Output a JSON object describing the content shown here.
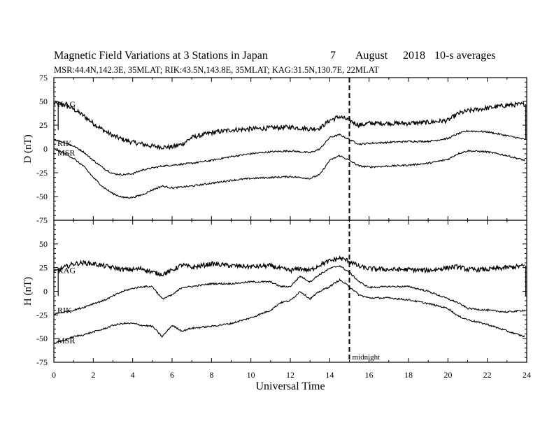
{
  "header": {
    "title": "Magnetic Field Variations at 3 Stations in Japan",
    "day": "7",
    "month": "August",
    "year": "2018",
    "averaging": "10-s averages",
    "stations_line": "MSR:44.4N,142.3E, 35MLAT;   RIK:43.5N,143.8E, 35MLAT;   KAG:31.5N,130.7E, 22MLAT"
  },
  "chart_data": [
    {
      "type": "line",
      "panel": "D",
      "ylabel": "D (nT)",
      "ylim": [
        -75,
        75
      ],
      "yticks": [
        75,
        50,
        25,
        0,
        -25,
        -50,
        -75
      ],
      "xlim": [
        0,
        24
      ],
      "series": [
        {
          "name": "KAG",
          "label_value": 47,
          "x": [
            0,
            0.5,
            1,
            1.5,
            2,
            2.5,
            3,
            3.5,
            4,
            4.5,
            5,
            5.5,
            6,
            6.5,
            7,
            8,
            9,
            10,
            11,
            12,
            12.5,
            13,
            13.5,
            14,
            14.5,
            15,
            15.5,
            16,
            17,
            18,
            19,
            20,
            20.5,
            21,
            22,
            23,
            23.9
          ],
          "y": [
            48,
            47,
            42,
            35,
            27,
            20,
            14,
            10,
            7,
            5,
            3,
            2,
            2,
            5,
            12,
            17,
            20,
            21,
            22,
            23,
            22,
            21,
            22,
            30,
            34,
            30,
            25,
            27,
            27,
            27,
            28,
            30,
            37,
            40,
            43,
            46,
            47
          ]
        },
        {
          "name": "RIK",
          "label_value": 6,
          "x": [
            0,
            0.5,
            1,
            1.5,
            2,
            2.5,
            3,
            3.5,
            4,
            4.5,
            5,
            5.5,
            6,
            6.5,
            7,
            8,
            9,
            10,
            11,
            12,
            12.5,
            13,
            13.5,
            14,
            14.5,
            15,
            15.5,
            16,
            17,
            18,
            19,
            20,
            20.5,
            21,
            22,
            23,
            23.9
          ],
          "y": [
            10,
            7,
            3,
            -3,
            -12,
            -20,
            -26,
            -27,
            -26,
            -22,
            -20,
            -18,
            -17,
            -16,
            -15,
            -12,
            -8,
            -5,
            -3,
            -2,
            -3,
            -4,
            0,
            12,
            15,
            10,
            5,
            6,
            7,
            8,
            8,
            11,
            16,
            19,
            18,
            14,
            10
          ]
        },
        {
          "name": "MSR",
          "label_value": -4,
          "x": [
            0,
            0.5,
            1,
            1.5,
            2,
            2.5,
            3,
            3.5,
            4,
            4.5,
            5,
            5.5,
            6,
            6.5,
            7,
            8,
            9,
            10,
            11,
            12,
            12.5,
            13,
            13.5,
            14,
            14.5,
            15,
            15.5,
            16,
            17,
            18,
            19,
            20,
            20.5,
            21,
            22,
            23,
            23.9
          ],
          "y": [
            0,
            -4,
            -10,
            -18,
            -30,
            -40,
            -47,
            -51,
            -51,
            -48,
            -43,
            -39,
            -41,
            -40,
            -39,
            -36,
            -33,
            -31,
            -30,
            -29,
            -30,
            -31,
            -27,
            -12,
            -7,
            -12,
            -18,
            -19,
            -18,
            -17,
            -15,
            -11,
            -5,
            -2,
            -3,
            -7,
            -12
          ]
        }
      ]
    },
    {
      "type": "line",
      "panel": "H",
      "ylabel": "H (nT)",
      "ylim": [
        -75,
        75
      ],
      "yticks": [
        50,
        25,
        0,
        -25,
        -50,
        -75
      ],
      "xlim": [
        0,
        24
      ],
      "xticks": [
        0,
        2,
        4,
        6,
        8,
        10,
        12,
        14,
        16,
        18,
        20,
        22,
        24
      ],
      "xlabel": "Universal Time",
      "annotation": {
        "text": "midnight",
        "x": 15
      },
      "series": [
        {
          "name": "KAG",
          "label_value": 22,
          "x": [
            0,
            0.5,
            1,
            1.5,
            2,
            2.5,
            3,
            3.5,
            4,
            4.5,
            5,
            5.5,
            6,
            6.5,
            7,
            8,
            9,
            10,
            11,
            11.5,
            12,
            12.5,
            13,
            13.5,
            14,
            14.5,
            15,
            15.5,
            16,
            17,
            18,
            19,
            20,
            20.5,
            21,
            22,
            23,
            23.9
          ],
          "y": [
            20,
            25,
            29,
            30,
            29,
            27,
            25,
            23,
            23,
            24,
            20,
            18,
            22,
            28,
            25,
            29,
            27,
            26,
            27,
            24,
            22,
            24,
            22,
            28,
            32,
            35,
            32,
            26,
            24,
            23,
            23,
            22,
            25,
            26,
            23,
            23,
            25,
            27
          ]
        },
        {
          "name": "RIK",
          "label_value": -20,
          "x": [
            0,
            0.5,
            1,
            1.5,
            2,
            2.5,
            3,
            3.5,
            4,
            4.5,
            5,
            5.5,
            6,
            6.5,
            7,
            8,
            9,
            10,
            11,
            11.5,
            12,
            12.5,
            13,
            13.5,
            14,
            14.5,
            15,
            15.5,
            16,
            17,
            18,
            19,
            20,
            20.5,
            21,
            22,
            23,
            23.9
          ],
          "y": [
            -24,
            -22,
            -20,
            -17,
            -13,
            -10,
            -5,
            0,
            3,
            5,
            5,
            -8,
            -4,
            4,
            5,
            8,
            8,
            10,
            10,
            5,
            5,
            16,
            10,
            18,
            24,
            27,
            20,
            10,
            4,
            5,
            5,
            0,
            -8,
            -12,
            -18,
            -20,
            -22,
            -20
          ]
        },
        {
          "name": "MSR",
          "label_value": -52,
          "x": [
            0,
            0.5,
            1,
            1.5,
            2,
            2.5,
            3,
            3.5,
            4,
            4.5,
            5,
            5.5,
            6,
            6.5,
            7,
            8,
            9,
            10,
            11,
            11.5,
            12,
            12.5,
            13,
            13.5,
            14,
            14.5,
            15,
            15.5,
            16,
            17,
            18,
            19,
            20,
            20.5,
            21,
            22,
            23,
            23.9
          ],
          "y": [
            -55,
            -52,
            -48,
            -46,
            -43,
            -40,
            -36,
            -34,
            -34,
            -36,
            -37,
            -48,
            -36,
            -42,
            -39,
            -37,
            -34,
            -28,
            -20,
            -12,
            -10,
            0,
            -8,
            0,
            5,
            12,
            5,
            -4,
            -7,
            -7,
            -9,
            -13,
            -18,
            -26,
            -30,
            -35,
            -42,
            -48
          ]
        }
      ]
    }
  ]
}
